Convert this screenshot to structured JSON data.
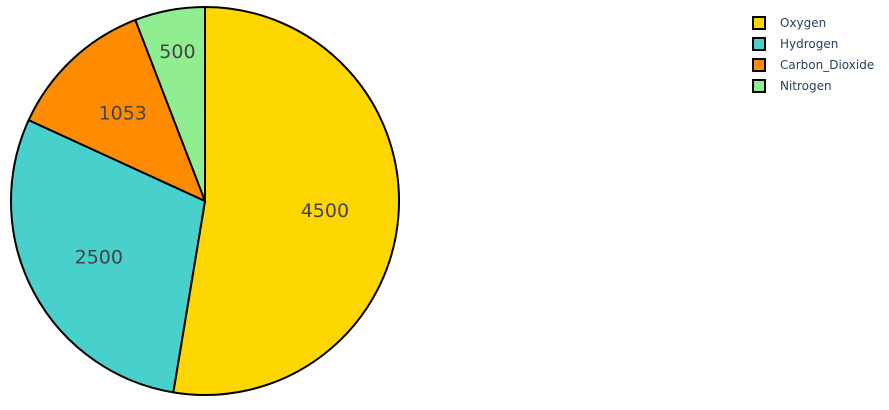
{
  "chart_data": {
    "type": "pie",
    "labels": [
      "Oxygen",
      "Hydrogen",
      "Carbon_Dioxide",
      "Nitrogen"
    ],
    "values": [
      4500,
      2500,
      1053,
      500
    ],
    "colors": [
      "#ffd700",
      "#48d1cc",
      "#ff8c00",
      "#90ee90"
    ],
    "text_labels": [
      "4500",
      "2500",
      "1053",
      "500"
    ],
    "legend": {
      "entries": [
        "Oxygen",
        "Hydrogen",
        "Carbon_Dioxide",
        "Nitrogen"
      ],
      "placement": "top-right"
    },
    "direction": "clockwise",
    "start": "top"
  }
}
